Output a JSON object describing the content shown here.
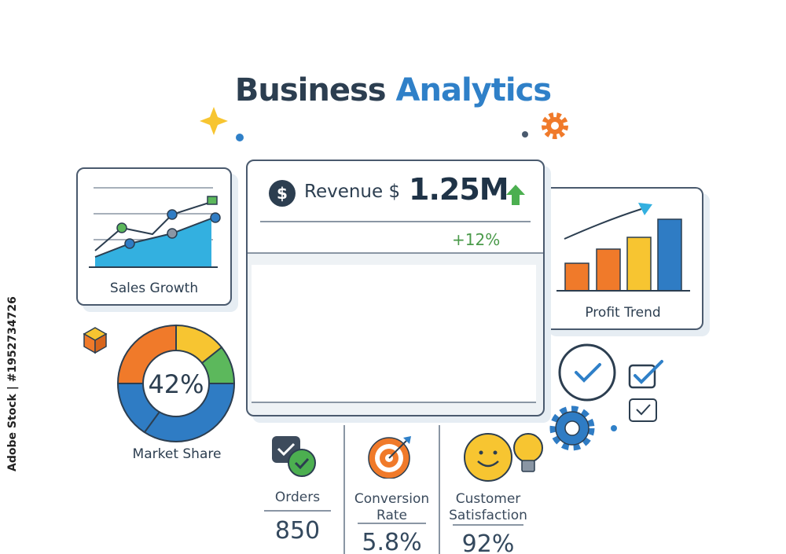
{
  "header": {
    "title_part1": "Business",
    "title_part2": "Analytics"
  },
  "sales_growth": {
    "label": "Sales Growth"
  },
  "market_share": {
    "label": "Market Share",
    "value": "42%"
  },
  "revenue": {
    "label": "Revenue $",
    "value": "1.25M",
    "change": "+12%",
    "trend": "up"
  },
  "metrics": [
    {
      "label": "Orders",
      "value": "850",
      "icon": "checkbox-icon"
    },
    {
      "label": "Conversion Rate",
      "value": "5.8%",
      "icon": "target-icon"
    },
    {
      "label": "Customer Satisfaction",
      "value": "92%",
      "icon": "smiley-icon"
    }
  ],
  "profit_trend": {
    "label": "Profit Trend"
  },
  "watermark": "Adobe Stock | #1952734726",
  "colors": {
    "navy": "#2c3e50",
    "blue": "#2f80c8",
    "orange": "#f07a2a",
    "yellow": "#f7c531",
    "green": "#5cb85c",
    "teal": "#33b0e0"
  }
}
